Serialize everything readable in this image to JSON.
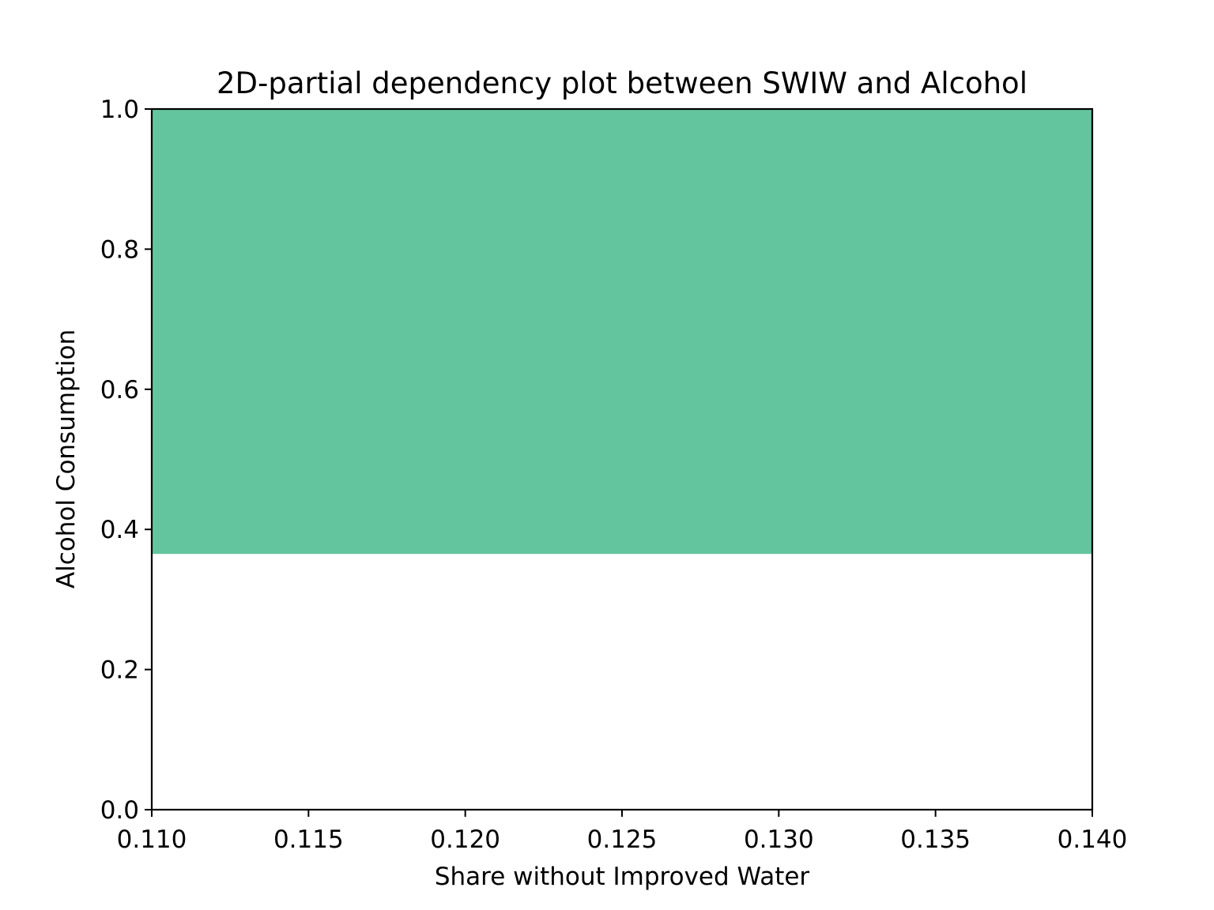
{
  "chart_data": {
    "type": "heatmap",
    "title": "2D-partial dependency plot between SWIW and Alcohol",
    "xlabel": "Share without Improved Water",
    "ylabel": "Alcohol Consumption",
    "xlim": [
      0.11,
      0.14
    ],
    "ylim": [
      0.0,
      1.0
    ],
    "x_ticks": [
      "0.110",
      "0.115",
      "0.120",
      "0.125",
      "0.130",
      "0.135",
      "0.140"
    ],
    "y_ticks": [
      "0.0",
      "0.2",
      "0.4",
      "0.6",
      "0.8",
      "1.0"
    ],
    "regions": [
      {
        "x": [
          0.11,
          0.14
        ],
        "y": [
          0.365,
          1.0
        ],
        "color": "#63c59e"
      }
    ],
    "grid": false
  }
}
